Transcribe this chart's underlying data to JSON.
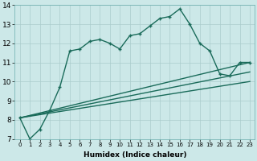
{
  "xlabel": "Humidex (Indice chaleur)",
  "bg_color": "#cce8e8",
  "grid_color": "#aacccc",
  "line_color": "#1a6b5a",
  "xlim": [
    -0.5,
    23.5
  ],
  "ylim": [
    7,
    14
  ],
  "yticks": [
    7,
    8,
    9,
    10,
    11,
    12,
    13,
    14
  ],
  "xticks": [
    0,
    1,
    2,
    3,
    4,
    5,
    6,
    7,
    8,
    9,
    10,
    11,
    12,
    13,
    14,
    15,
    16,
    17,
    18,
    19,
    20,
    21,
    22,
    23
  ],
  "series": [
    {
      "x": [
        0,
        1,
        2,
        3,
        4,
        5,
        6,
        7,
        8,
        9,
        10,
        11,
        12,
        13,
        14,
        15,
        16,
        17,
        18,
        19,
        20,
        21,
        22,
        23
      ],
      "y": [
        8.1,
        7.0,
        7.5,
        8.5,
        9.7,
        11.6,
        11.7,
        12.1,
        12.2,
        12.0,
        11.7,
        12.4,
        12.5,
        12.9,
        13.3,
        13.4,
        13.8,
        13.0,
        12.0,
        11.6,
        10.4,
        10.3,
        11.0,
        11.0
      ],
      "marker": "+",
      "linestyle": "-",
      "linewidth": 1.0
    },
    {
      "x": [
        0,
        23
      ],
      "y": [
        8.1,
        11.0
      ],
      "marker": null,
      "linestyle": "-",
      "linewidth": 1.0
    },
    {
      "x": [
        0,
        23
      ],
      "y": [
        8.1,
        10.5
      ],
      "marker": null,
      "linestyle": "-",
      "linewidth": 1.0
    },
    {
      "x": [
        0,
        23
      ],
      "y": [
        8.1,
        10.0
      ],
      "marker": null,
      "linestyle": "-",
      "linewidth": 1.0
    }
  ]
}
